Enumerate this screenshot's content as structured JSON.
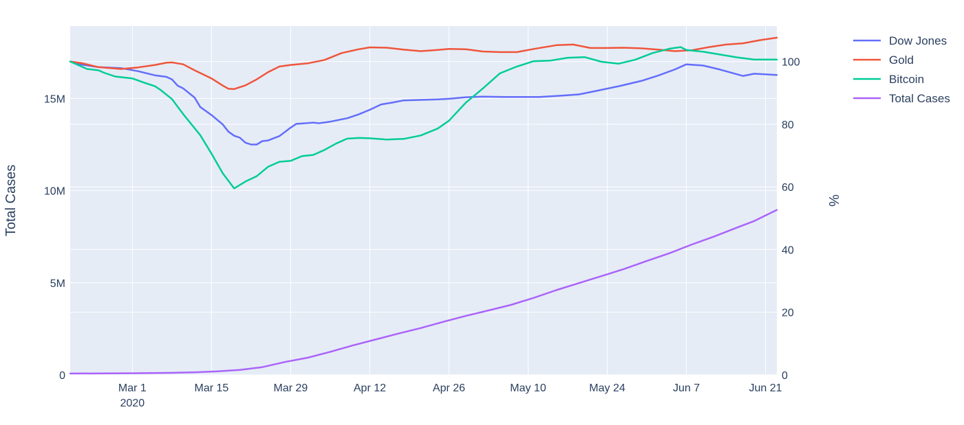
{
  "chart_data": {
    "type": "line",
    "title": "",
    "xlabel": "",
    "ylabel": "Total Cases",
    "y2label": "%",
    "x_range": [
      "2020-02-19",
      "2020-06-23"
    ],
    "ylim": [
      0,
      18926000
    ],
    "y2lim": [
      0,
      111.3
    ],
    "x_ticks": [
      {
        "date": "2020-03-01",
        "label": "Mar 1",
        "sublabel": "2020"
      },
      {
        "date": "2020-03-15",
        "label": "Mar 15"
      },
      {
        "date": "2020-03-29",
        "label": "Mar 29"
      },
      {
        "date": "2020-04-12",
        "label": "Apr 12"
      },
      {
        "date": "2020-04-26",
        "label": "Apr 26"
      },
      {
        "date": "2020-05-10",
        "label": "May 10"
      },
      {
        "date": "2020-05-24",
        "label": "May 24"
      },
      {
        "date": "2020-06-07",
        "label": "Jun 7"
      },
      {
        "date": "2020-06-21",
        "label": "Jun 21"
      }
    ],
    "y_ticks": [
      {
        "value": 0,
        "label": "0"
      },
      {
        "value": 5000000,
        "label": "5M"
      },
      {
        "value": 10000000,
        "label": "10M"
      },
      {
        "value": 15000000,
        "label": "15M"
      }
    ],
    "y2_ticks": [
      {
        "value": 0,
        "label": "0"
      },
      {
        "value": 20,
        "label": "20"
      },
      {
        "value": 40,
        "label": "40"
      },
      {
        "value": 60,
        "label": "60"
      },
      {
        "value": 80,
        "label": "80"
      },
      {
        "value": 100,
        "label": "100"
      }
    ],
    "grid": true,
    "legend_position": "right",
    "series": [
      {
        "name": "Dow Jones",
        "axis": "y2",
        "color": "#636efa",
        "points": [
          [
            "2020-02-19",
            100
          ],
          [
            "2020-02-21",
            99
          ],
          [
            "2020-02-24",
            98.2
          ],
          [
            "2020-02-28",
            97.9
          ],
          [
            "2020-03-02",
            96.9
          ],
          [
            "2020-03-05",
            95.6
          ],
          [
            "2020-03-07",
            95.1
          ],
          [
            "2020-03-08",
            94.3
          ],
          [
            "2020-03-09",
            92.3
          ],
          [
            "2020-03-10",
            91.4
          ],
          [
            "2020-03-12",
            88.5
          ],
          [
            "2020-03-13",
            85.5
          ],
          [
            "2020-03-15",
            82.9
          ],
          [
            "2020-03-17",
            79.9
          ],
          [
            "2020-03-18",
            77.6
          ],
          [
            "2020-03-19",
            76.3
          ],
          [
            "2020-03-20",
            75.7
          ],
          [
            "2020-03-21",
            74.1
          ],
          [
            "2020-03-22",
            73.5
          ],
          [
            "2020-03-23",
            73.5
          ],
          [
            "2020-03-24",
            74.6
          ],
          [
            "2020-03-25",
            74.8
          ],
          [
            "2020-03-27",
            76.2
          ],
          [
            "2020-03-29",
            78.9
          ],
          [
            "2020-03-30",
            80.1
          ],
          [
            "2020-03-31",
            80.2
          ],
          [
            "2020-04-02",
            80.5
          ],
          [
            "2020-04-03",
            80.3
          ],
          [
            "2020-04-05",
            80.8
          ],
          [
            "2020-04-08",
            81.9
          ],
          [
            "2020-04-10",
            83.1
          ],
          [
            "2020-04-12",
            84.6
          ],
          [
            "2020-04-14",
            86.3
          ],
          [
            "2020-04-16",
            86.9
          ],
          [
            "2020-04-18",
            87.6
          ],
          [
            "2020-04-20",
            87.7
          ],
          [
            "2020-04-22",
            87.8
          ],
          [
            "2020-04-24",
            87.9
          ],
          [
            "2020-04-26",
            88.1
          ],
          [
            "2020-04-29",
            88.6
          ],
          [
            "2020-05-02",
            88.8
          ],
          [
            "2020-05-06",
            88.7
          ],
          [
            "2020-05-09",
            88.7
          ],
          [
            "2020-05-12",
            88.7
          ],
          [
            "2020-05-16",
            89.1
          ],
          [
            "2020-05-19",
            89.5
          ],
          [
            "2020-05-22",
            90.6
          ],
          [
            "2020-05-26",
            92.1
          ],
          [
            "2020-05-30",
            93.8
          ],
          [
            "2020-06-02",
            95.5
          ],
          [
            "2020-06-05",
            97.5
          ],
          [
            "2020-06-07",
            99.1
          ],
          [
            "2020-06-10",
            98.7
          ],
          [
            "2020-06-13",
            97.4
          ],
          [
            "2020-06-16",
            95.9
          ],
          [
            "2020-06-17",
            95.4
          ],
          [
            "2020-06-19",
            96.1
          ],
          [
            "2020-06-21",
            95.9
          ],
          [
            "2020-06-23",
            95.7
          ]
        ]
      },
      {
        "name": "Gold",
        "axis": "y2",
        "color": "#ef553b",
        "points": [
          [
            "2020-02-19",
            100
          ],
          [
            "2020-02-21",
            99.5
          ],
          [
            "2020-02-24",
            98.2
          ],
          [
            "2020-02-28",
            97.6
          ],
          [
            "2020-03-02",
            98.1
          ],
          [
            "2020-03-05",
            98.9
          ],
          [
            "2020-03-07",
            99.6
          ],
          [
            "2020-03-08",
            99.7
          ],
          [
            "2020-03-10",
            99.1
          ],
          [
            "2020-03-12",
            97.2
          ],
          [
            "2020-03-15",
            94.6
          ],
          [
            "2020-03-17",
            92.3
          ],
          [
            "2020-03-18",
            91.3
          ],
          [
            "2020-03-19",
            91.2
          ],
          [
            "2020-03-21",
            92.4
          ],
          [
            "2020-03-23",
            94.3
          ],
          [
            "2020-03-25",
            96.6
          ],
          [
            "2020-03-27",
            98.4
          ],
          [
            "2020-03-29",
            98.9
          ],
          [
            "2020-04-01",
            99.4
          ],
          [
            "2020-04-04",
            100.5
          ],
          [
            "2020-04-07",
            102.7
          ],
          [
            "2020-04-10",
            103.9
          ],
          [
            "2020-04-12",
            104.5
          ],
          [
            "2020-04-15",
            104.4
          ],
          [
            "2020-04-18",
            103.8
          ],
          [
            "2020-04-21",
            103.3
          ],
          [
            "2020-04-24",
            103.7
          ],
          [
            "2020-04-26",
            104
          ],
          [
            "2020-04-29",
            103.9
          ],
          [
            "2020-05-02",
            103.2
          ],
          [
            "2020-05-05",
            103
          ],
          [
            "2020-05-08",
            103
          ],
          [
            "2020-05-11",
            104
          ],
          [
            "2020-05-15",
            105.2
          ],
          [
            "2020-05-18",
            105.4
          ],
          [
            "2020-05-21",
            104.3
          ],
          [
            "2020-05-24",
            104.3
          ],
          [
            "2020-05-27",
            104.4
          ],
          [
            "2020-05-30",
            104.2
          ],
          [
            "2020-06-02",
            103.8
          ],
          [
            "2020-06-05",
            103.3
          ],
          [
            "2020-06-08",
            103.6
          ],
          [
            "2020-06-11",
            104.6
          ],
          [
            "2020-06-14",
            105.4
          ],
          [
            "2020-06-17",
            105.8
          ],
          [
            "2020-06-20",
            106.8
          ],
          [
            "2020-06-23",
            107.6
          ]
        ]
      },
      {
        "name": "Bitcoin",
        "axis": "y2",
        "color": "#00cc96",
        "points": [
          [
            "2020-02-19",
            100
          ],
          [
            "2020-02-21",
            98.4
          ],
          [
            "2020-02-22",
            97.6
          ],
          [
            "2020-02-24",
            97.2
          ],
          [
            "2020-02-25",
            96.4
          ],
          [
            "2020-02-27",
            95.2
          ],
          [
            "2020-02-28",
            95
          ],
          [
            "2020-03-01",
            94.6
          ],
          [
            "2020-03-03",
            93.3
          ],
          [
            "2020-03-05",
            92.1
          ],
          [
            "2020-03-06",
            90.9
          ],
          [
            "2020-03-08",
            88
          ],
          [
            "2020-03-10",
            83.2
          ],
          [
            "2020-03-13",
            76.5
          ],
          [
            "2020-03-15",
            70.6
          ],
          [
            "2020-03-17",
            64.3
          ],
          [
            "2020-03-19",
            59.5
          ],
          [
            "2020-03-21",
            61.7
          ],
          [
            "2020-03-23",
            63.4
          ],
          [
            "2020-03-25",
            66.4
          ],
          [
            "2020-03-27",
            68
          ],
          [
            "2020-03-29",
            68.3
          ],
          [
            "2020-03-31",
            69.8
          ],
          [
            "2020-04-02",
            70.2
          ],
          [
            "2020-04-04",
            71.8
          ],
          [
            "2020-04-06",
            73.8
          ],
          [
            "2020-04-08",
            75.4
          ],
          [
            "2020-04-10",
            75.6
          ],
          [
            "2020-04-12",
            75.5
          ],
          [
            "2020-04-15",
            75.1
          ],
          [
            "2020-04-18",
            75.3
          ],
          [
            "2020-04-21",
            76.4
          ],
          [
            "2020-04-24",
            78.6
          ],
          [
            "2020-04-26",
            81.1
          ],
          [
            "2020-04-29",
            86.9
          ],
          [
            "2020-05-02",
            91.4
          ],
          [
            "2020-05-05",
            96.2
          ],
          [
            "2020-05-08",
            98.4
          ],
          [
            "2020-05-11",
            100.1
          ],
          [
            "2020-05-14",
            100.3
          ],
          [
            "2020-05-17",
            101.2
          ],
          [
            "2020-05-20",
            101.4
          ],
          [
            "2020-05-23",
            99.9
          ],
          [
            "2020-05-26",
            99.3
          ],
          [
            "2020-05-29",
            100.6
          ],
          [
            "2020-06-01",
            102.7
          ],
          [
            "2020-06-04",
            104.1
          ],
          [
            "2020-06-06",
            104.6
          ],
          [
            "2020-06-07",
            103.7
          ],
          [
            "2020-06-10",
            103.1
          ],
          [
            "2020-06-13",
            102.2
          ],
          [
            "2020-06-16",
            101.3
          ],
          [
            "2020-06-19",
            100.6
          ],
          [
            "2020-06-23",
            100.6
          ]
        ]
      },
      {
        "name": "Total Cases",
        "axis": "y",
        "color": "#ab63fa",
        "points": [
          [
            "2020-02-19",
            75000
          ],
          [
            "2020-02-24",
            80000
          ],
          [
            "2020-03-01",
            88000
          ],
          [
            "2020-03-08",
            110000
          ],
          [
            "2020-03-12",
            140000
          ],
          [
            "2020-03-16",
            190000
          ],
          [
            "2020-03-20",
            270000
          ],
          [
            "2020-03-24",
            420000
          ],
          [
            "2020-03-28",
            700000
          ],
          [
            "2020-04-01",
            930000
          ],
          [
            "2020-04-05",
            1250000
          ],
          [
            "2020-04-09",
            1600000
          ],
          [
            "2020-04-13",
            1920000
          ],
          [
            "2020-04-17",
            2240000
          ],
          [
            "2020-04-21",
            2540000
          ],
          [
            "2020-04-25",
            2880000
          ],
          [
            "2020-04-29",
            3200000
          ],
          [
            "2020-05-03",
            3500000
          ],
          [
            "2020-05-07",
            3800000
          ],
          [
            "2020-05-11",
            4180000
          ],
          [
            "2020-05-15",
            4600000
          ],
          [
            "2020-05-19",
            4980000
          ],
          [
            "2020-05-23",
            5360000
          ],
          [
            "2020-05-27",
            5750000
          ],
          [
            "2020-05-31",
            6180000
          ],
          [
            "2020-06-04",
            6600000
          ],
          [
            "2020-06-08",
            7080000
          ],
          [
            "2020-06-12",
            7520000
          ],
          [
            "2020-06-16",
            8000000
          ],
          [
            "2020-06-19",
            8350000
          ],
          [
            "2020-06-23",
            8950000
          ]
        ]
      }
    ]
  }
}
